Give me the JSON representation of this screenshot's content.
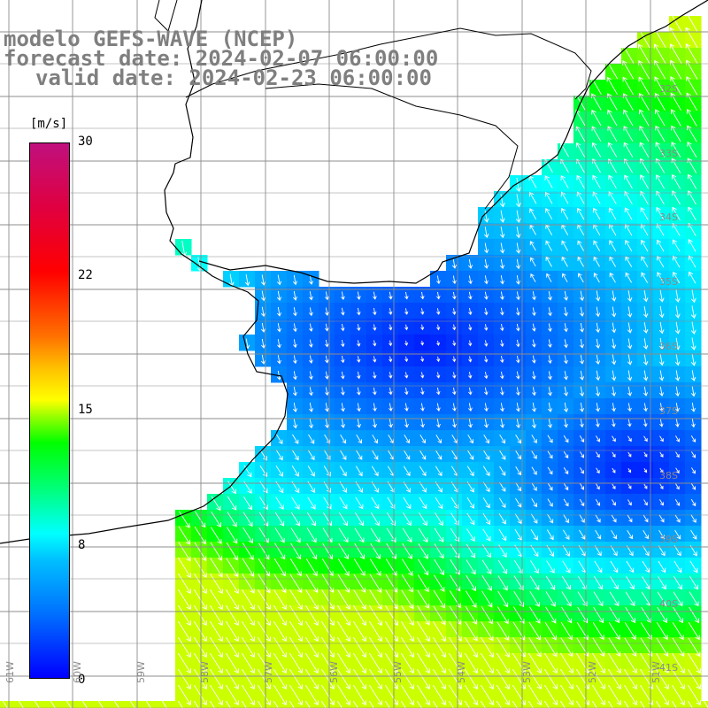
{
  "title": {
    "line1": "modelo GEFS-WAVE (NCEP)",
    "line2": "forecast date: 2024-02-07 06:00:00",
    "line3": "valid date: 2024-02-23 06:00:00"
  },
  "colorbar": {
    "unit": "[m/s]",
    "labels": [
      "30",
      "22",
      "15",
      "8",
      "0"
    ],
    "min": 0,
    "max": 30
  },
  "lat_labels": [
    "32S",
    "33S",
    "34S",
    "35S",
    "36S",
    "37S",
    "38S",
    "39S",
    "40S",
    "41S"
  ],
  "lon_labels": [
    "61W",
    "60W",
    "59W",
    "58W",
    "57W",
    "56W",
    "55W",
    "54W",
    "53W",
    "52W",
    "51W"
  ],
  "colors": {
    "land": "#ffffff",
    "grid": "#8c8c8c",
    "arrows": "#ffffff",
    "coast": "#000000",
    "title": "#7f7f7f"
  }
}
